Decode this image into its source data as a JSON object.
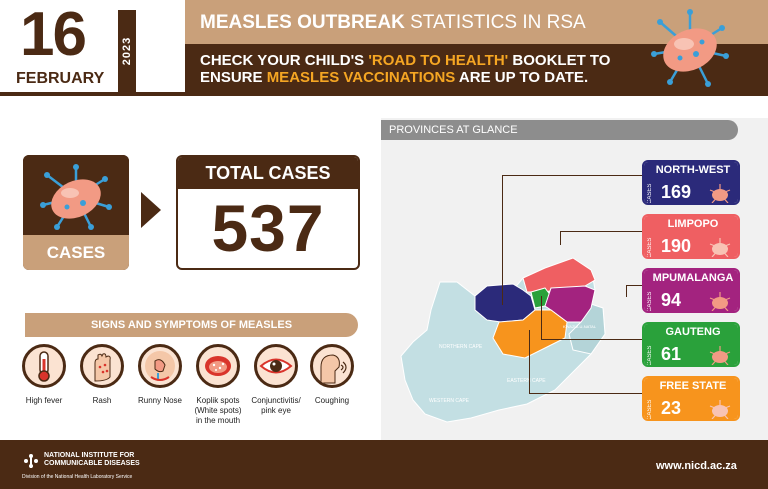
{
  "date": {
    "day": "16",
    "month": "FEBRUARY",
    "year": "2023"
  },
  "header": {
    "title_bold": "MEASLES OUTBREAK",
    "title_rest": " STATISTICS IN RSA",
    "subtitle_1": "CHECK YOUR CHILD'S ",
    "subtitle_2": "'ROAD TO HEALTH'",
    "subtitle_3": " BOOKLET TO ENSURE ",
    "subtitle_4": "MEASLES VACCINATIONS",
    "subtitle_5": " ARE UP TO DATE."
  },
  "cases": {
    "label": "CASES",
    "total_label": "TOTAL CASES",
    "total_value": "537"
  },
  "symptoms": {
    "title": "SIGNS AND SYMPTOMS OF MEASLES",
    "items": [
      {
        "label": "High fever"
      },
      {
        "label": "Rash"
      },
      {
        "label": "Runny Nose"
      },
      {
        "label": "Koplik spots (White spots) in the mouth"
      },
      {
        "label": "Conjunctivitis/ pink eye"
      },
      {
        "label": "Coughing"
      }
    ]
  },
  "provinces": {
    "title": "PROVINCES AT GLANCE",
    "cases_word": "CASES",
    "items": [
      {
        "name": "NORTH-WEST",
        "cases": "169",
        "color": "#2b2a7a"
      },
      {
        "name": "LIMPOPO",
        "cases": "190",
        "color": "#ef5f62"
      },
      {
        "name": "MPUMALANGA",
        "cases": "94",
        "color": "#a3237f"
      },
      {
        "name": "GAUTENG",
        "cases": "61",
        "color": "#2aa13b"
      },
      {
        "name": "FREE STATE",
        "cases": "23",
        "color": "#f7941d"
      }
    ],
    "map_labels": {
      "northern_cape": "NORTHERN CAPE",
      "western_cape": "WESTERN CAPE",
      "eastern_cape": "EASTERN CAPE",
      "kzn": "KWAZULU-NATAL"
    }
  },
  "footer": {
    "org_line1": "NATIONAL INSTITUTE FOR",
    "org_line2": "COMMUNICABLE DISEASES",
    "org_sub": "Division of the National Health Laboratory Service",
    "url": "www.nicd.ac.za"
  },
  "colors": {
    "brown": "#4b2a14",
    "tan": "#c9a07a",
    "accent": "#f5a623"
  }
}
